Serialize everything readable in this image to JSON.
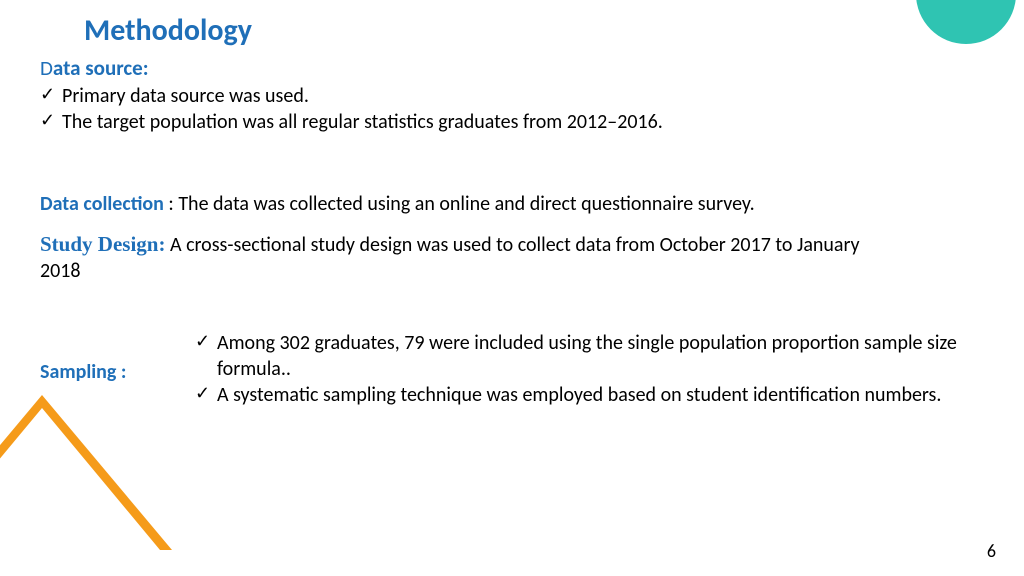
{
  "colors": {
    "heading_blue": "#1f6fb8",
    "body_text": "#000000",
    "background": "#ffffff",
    "accent_teal": "#2fc4b2",
    "accent_orange": "#f59b1a"
  },
  "title": "Methodology",
  "data_source": {
    "label_first_letter": "D",
    "label_rest": "ata source:",
    "bullets": [
      " Primary data source  was used.",
      "The target population was all regular statistics graduates from 2012–2016."
    ]
  },
  "data_collection": {
    "label": "Data collection",
    "colon": " : ",
    "text": "The data was collected using an online and direct questionnaire survey."
  },
  "study_design": {
    "label": "Study Design:",
    "text": " A cross-sectional study design was used to collect data from October 2017 to January 2018"
  },
  "sampling": {
    "label": "Sampling :",
    "bullets": [
      "Among  302 graduates, 79 were included using the single population proportion sample size formula..",
      "A systematic sampling technique was employed based on student identification numbers."
    ]
  },
  "page_number": "6"
}
